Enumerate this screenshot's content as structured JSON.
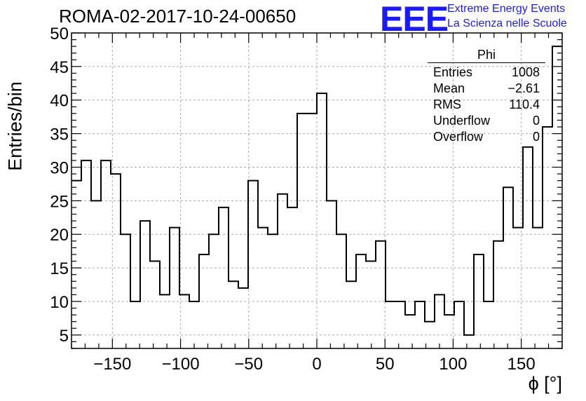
{
  "chart_data": {
    "type": "bar",
    "histogram": true,
    "title": "ROMA-02-2017-10-24-00650",
    "xlabel": "ϕ [°]",
    "ylabel": "Entries/bin",
    "xlim": [
      -180,
      180
    ],
    "ylim": [
      3,
      50
    ],
    "bin_width": 7.2,
    "x_ticks": [
      -150,
      -100,
      -50,
      0,
      50,
      100,
      150
    ],
    "x_tick_labels": [
      "−150",
      "−100",
      "−50",
      "0",
      "50",
      "100",
      "150"
    ],
    "y_ticks": [
      5,
      10,
      15,
      20,
      25,
      30,
      35,
      40,
      45,
      50
    ],
    "y_tick_labels": [
      "5",
      "10",
      "15",
      "20",
      "25",
      "30",
      "35",
      "40",
      "45",
      "50"
    ],
    "values": [
      28,
      31,
      25,
      31,
      29,
      20,
      10,
      22,
      16,
      11,
      21,
      11,
      10,
      17,
      20,
      24,
      13,
      12,
      28,
      21,
      20,
      26,
      24,
      38,
      38,
      41,
      25,
      20,
      13,
      17,
      16,
      19,
      10,
      10,
      8,
      10,
      7,
      11,
      8,
      10,
      5,
      17,
      10,
      19,
      27,
      21,
      33,
      21,
      36,
      48
    ],
    "grid": true,
    "line_color": "#000000"
  },
  "stats_box": {
    "name": "Phi",
    "rows": [
      {
        "label": "Entries",
        "value": "1008"
      },
      {
        "label": "Mean",
        "value": "−2.61"
      },
      {
        "label": "RMS",
        "value": "110.4"
      },
      {
        "label": "Underflow",
        "value": "0"
      },
      {
        "label": "Overflow",
        "value": "0"
      }
    ]
  },
  "logo": {
    "mark": "EEE",
    "line1": "Extreme Energy Events",
    "line2": "La Scienza nelle Scuole",
    "color": "#1a1aff"
  }
}
